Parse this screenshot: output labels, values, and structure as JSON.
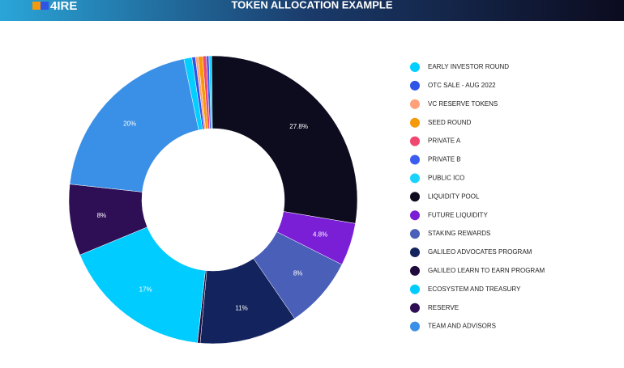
{
  "header": {
    "logo": "4IRE",
    "title": "TOKEN ALLOCATION EXAMPLE"
  },
  "chart_data": {
    "type": "donut",
    "categories": [
      "EARLY INVESTOR ROUND",
      "OTC SALE - AUG 2022",
      "VC RESERVE TOKENS",
      "SEED ROUND",
      "PRIVATE A",
      "PRIVATE B",
      "PUBLIC ICO",
      "LIQUIDITY POOL",
      "FUTURE LIQUIDITY",
      "STAKING REWARDS",
      "GALILEO ADVOCATES PROGRAM",
      "GALILEO LEARN TO EARN PROGRAM",
      "ECOSYSTEM AND TREASURY",
      "RESERVE",
      "TEAM AND ADVISORS"
    ],
    "values": [
      0.9,
      0.4,
      0.3,
      0.5,
      0.4,
      0.3,
      0.3,
      27.8,
      4.8,
      8,
      11,
      0.3,
      17,
      8,
      20
    ],
    "value_labels": [
      null,
      null,
      null,
      null,
      null,
      null,
      null,
      "27.8%",
      "4.8%",
      "8%",
      "11%",
      null,
      "17%",
      "8%",
      "20%"
    ],
    "colors": [
      "#00cfff",
      "#2f55e6",
      "#ffa07a",
      "#f59a0c",
      "#f0466f",
      "#3c5ef0",
      "#1ad3ff",
      "#0d0b1e",
      "#7a1fd6",
      "#4a5fb8",
      "#13235e",
      "#200a3d",
      "#00ccff",
      "#2e0e55",
      "#3a8fe6"
    ],
    "legend": "right"
  }
}
